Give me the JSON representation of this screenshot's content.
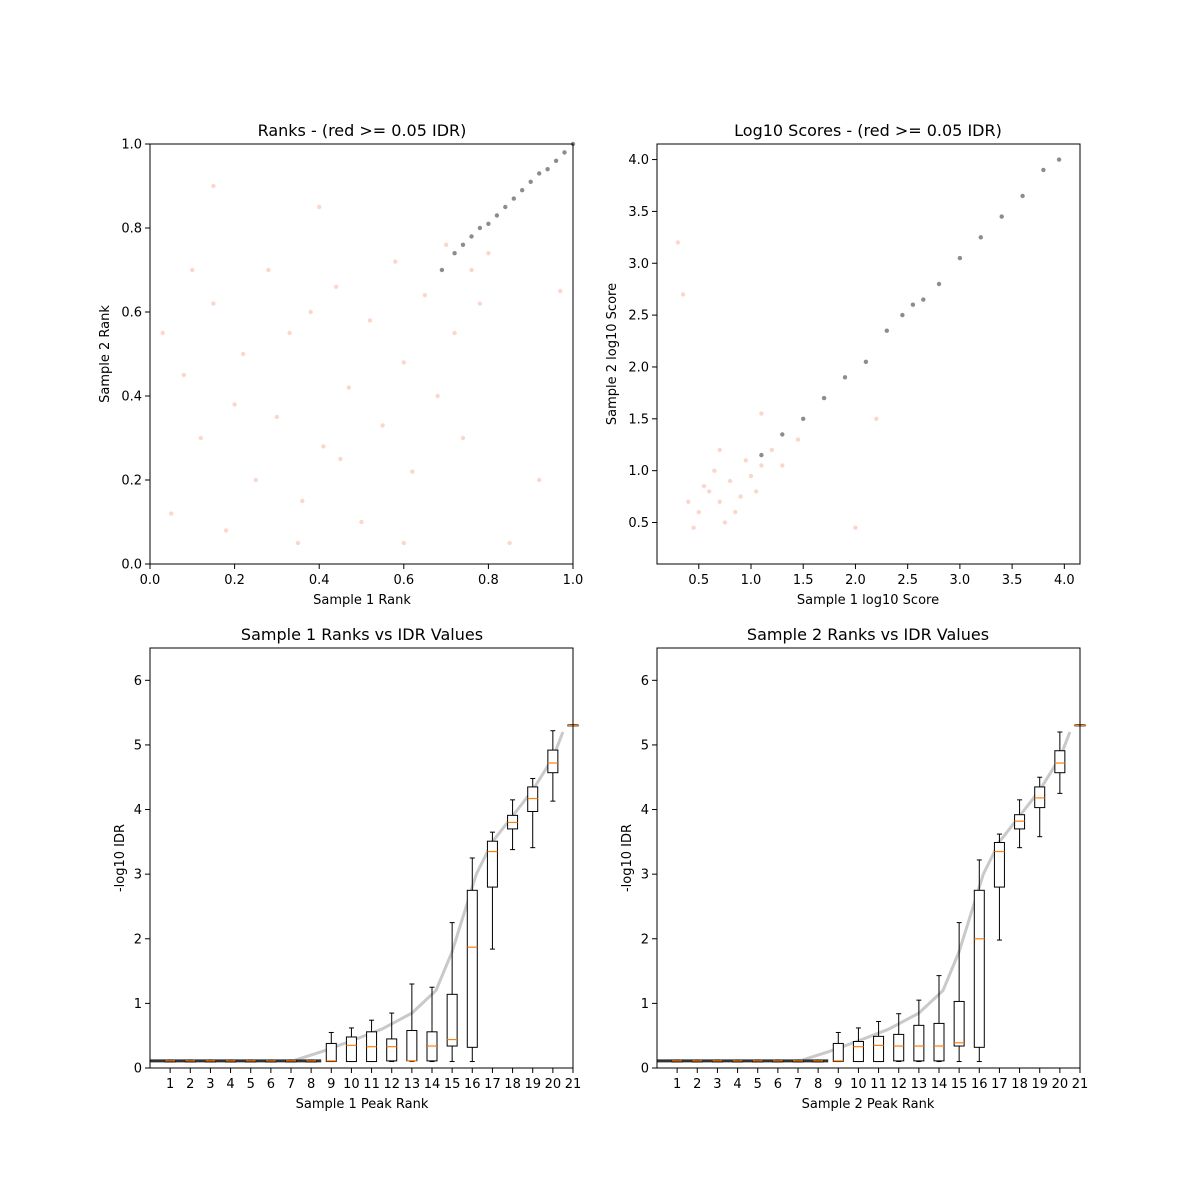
{
  "chart_data": [
    {
      "id": "ranks",
      "type": "scatter",
      "title": "Ranks - (red >= 0.05 IDR)",
      "xlabel": "Sample 1 Rank",
      "ylabel": "Sample 2 Rank",
      "xlim": [
        0,
        1
      ],
      "ylim": [
        0,
        1
      ],
      "xticks": [
        "0.0",
        "0.2",
        "0.4",
        "0.6",
        "0.8",
        "1.0"
      ],
      "yticks": [
        "0.0",
        "0.2",
        "0.4",
        "0.6",
        "0.8",
        "1.0"
      ],
      "grid": false,
      "colors": {
        "fail_idr": "#fa8a6a",
        "pass_idr": "#000000"
      },
      "series": [
        {
          "values": [
            [
              0.05,
              0.12
            ],
            [
              0.08,
              0.45
            ],
            [
              0.12,
              0.3
            ],
            [
              0.15,
              0.62
            ],
            [
              0.18,
              0.08
            ],
            [
              0.22,
              0.5
            ],
            [
              0.25,
              0.2
            ],
            [
              0.28,
              0.7
            ],
            [
              0.3,
              0.35
            ],
            [
              0.33,
              0.55
            ],
            [
              0.36,
              0.15
            ],
            [
              0.38,
              0.6
            ],
            [
              0.41,
              0.28
            ],
            [
              0.44,
              0.66
            ],
            [
              0.47,
              0.42
            ],
            [
              0.5,
              0.1
            ],
            [
              0.52,
              0.58
            ],
            [
              0.55,
              0.33
            ],
            [
              0.58,
              0.72
            ],
            [
              0.6,
              0.48
            ],
            [
              0.62,
              0.22
            ],
            [
              0.65,
              0.64
            ],
            [
              0.68,
              0.4
            ],
            [
              0.7,
              0.76
            ],
            [
              0.72,
              0.55
            ],
            [
              0.74,
              0.3
            ],
            [
              0.76,
              0.7
            ],
            [
              0.78,
              0.62
            ],
            [
              0.8,
              0.74
            ],
            [
              0.1,
              0.7
            ],
            [
              0.2,
              0.38
            ],
            [
              0.35,
              0.05
            ],
            [
              0.45,
              0.25
            ],
            [
              0.6,
              0.05
            ],
            [
              0.03,
              0.55
            ],
            [
              0.15,
              0.9
            ],
            [
              0.4,
              0.85
            ],
            [
              0.92,
              0.2
            ],
            [
              0.97,
              0.65
            ],
            [
              0.85,
              0.05
            ]
          ]
        },
        {
          "values": [
            [
              0.69,
              0.7
            ],
            [
              0.72,
              0.74
            ],
            [
              0.74,
              0.76
            ],
            [
              0.76,
              0.78
            ],
            [
              0.78,
              0.8
            ],
            [
              0.8,
              0.81
            ],
            [
              0.82,
              0.83
            ],
            [
              0.84,
              0.85
            ],
            [
              0.86,
              0.87
            ],
            [
              0.88,
              0.89
            ],
            [
              0.9,
              0.91
            ],
            [
              0.92,
              0.93
            ],
            [
              0.94,
              0.94
            ],
            [
              0.96,
              0.96
            ],
            [
              0.98,
              0.98
            ],
            [
              1.0,
              1.0
            ]
          ]
        }
      ]
    },
    {
      "id": "scores",
      "type": "scatter",
      "title": "Log10 Scores - (red >= 0.05 IDR)",
      "xlabel": "Sample 1 log10 Score",
      "ylabel": "Sample 2 log10 Score",
      "xlim": [
        0.1,
        4.15
      ],
      "ylim": [
        0.1,
        4.15
      ],
      "xticks": [
        "0.5",
        "1.0",
        "1.5",
        "2.0",
        "2.5",
        "3.0",
        "3.5",
        "4.0"
      ],
      "yticks": [
        "0.5",
        "1.0",
        "1.5",
        "2.0",
        "2.5",
        "3.0",
        "3.5",
        "4.0"
      ],
      "grid": false,
      "colors": {
        "fail_idr": "#fa8a6a",
        "pass_idr": "#000000"
      },
      "series": [
        {
          "values": [
            [
              0.5,
              0.6
            ],
            [
              0.6,
              0.8
            ],
            [
              0.7,
              0.7
            ],
            [
              0.8,
              0.9
            ],
            [
              0.9,
              0.75
            ],
            [
              0.65,
              1.0
            ],
            [
              0.75,
              0.5
            ],
            [
              0.85,
              0.6
            ],
            [
              1.0,
              0.95
            ],
            [
              1.05,
              0.8
            ],
            [
              0.55,
              0.85
            ],
            [
              0.95,
              1.1
            ],
            [
              1.1,
              1.05
            ],
            [
              0.4,
              0.7
            ],
            [
              1.2,
              1.2
            ],
            [
              0.7,
              1.2
            ],
            [
              1.3,
              1.05
            ],
            [
              0.45,
              0.45
            ],
            [
              1.45,
              1.3
            ],
            [
              2.0,
              0.45
            ],
            [
              0.3,
              3.2
            ],
            [
              0.35,
              2.7
            ],
            [
              2.2,
              1.5
            ],
            [
              1.1,
              1.55
            ]
          ]
        },
        {
          "values": [
            [
              1.1,
              1.15
            ],
            [
              1.3,
              1.35
            ],
            [
              1.5,
              1.5
            ],
            [
              1.7,
              1.7
            ],
            [
              1.9,
              1.9
            ],
            [
              2.1,
              2.05
            ],
            [
              2.3,
              2.35
            ],
            [
              2.45,
              2.5
            ],
            [
              2.55,
              2.6
            ],
            [
              2.65,
              2.65
            ],
            [
              2.8,
              2.8
            ],
            [
              3.0,
              3.05
            ],
            [
              3.2,
              3.25
            ],
            [
              3.4,
              3.45
            ],
            [
              3.6,
              3.65
            ],
            [
              3.8,
              3.9
            ],
            [
              3.95,
              4.0
            ]
          ]
        }
      ]
    },
    {
      "id": "s1",
      "type": "box",
      "title": "Sample 1 Ranks vs IDR Values",
      "xlabel": "Sample 1 Peak Rank",
      "ylabel": "-log10 IDR",
      "xlim": [
        0,
        21
      ],
      "ylim": [
        0,
        6.5
      ],
      "xticks": [
        "1",
        "2",
        "3",
        "4",
        "5",
        "6",
        "7",
        "8",
        "9",
        "10",
        "11",
        "12",
        "13",
        "14",
        "15",
        "16",
        "17",
        "18",
        "19",
        "20",
        "21"
      ],
      "yticks": [
        "0",
        "1",
        "2",
        "3",
        "4",
        "5",
        "6"
      ],
      "grid": false,
      "colors": {
        "box": "#000000",
        "median": "#ff7f0e",
        "points": "#888888"
      },
      "positions": [
        1,
        2,
        3,
        4,
        5,
        6,
        7,
        8,
        9,
        10,
        11,
        12,
        13,
        14,
        15,
        16,
        17,
        18,
        19,
        20,
        21
      ],
      "boxes": [
        [
          0.1,
          0.11,
          0.11,
          0.11,
          0.12
        ],
        [
          0.1,
          0.11,
          0.11,
          0.11,
          0.12
        ],
        [
          0.1,
          0.11,
          0.11,
          0.11,
          0.12
        ],
        [
          0.1,
          0.11,
          0.11,
          0.11,
          0.12
        ],
        [
          0.1,
          0.11,
          0.11,
          0.11,
          0.12
        ],
        [
          0.1,
          0.11,
          0.11,
          0.11,
          0.12
        ],
        [
          0.1,
          0.11,
          0.11,
          0.11,
          0.12
        ],
        [
          0.1,
          0.11,
          0.11,
          0.11,
          0.12
        ],
        [
          0.1,
          0.1,
          0.11,
          0.38,
          0.55
        ],
        [
          0.1,
          0.1,
          0.35,
          0.48,
          0.62
        ],
        [
          0.1,
          0.1,
          0.33,
          0.56,
          0.74
        ],
        [
          0.1,
          0.11,
          0.33,
          0.45,
          0.85
        ],
        [
          0.1,
          0.11,
          0.11,
          0.58,
          1.3
        ],
        [
          0.1,
          0.11,
          0.34,
          0.56,
          1.25
        ],
        [
          0.1,
          0.34,
          0.44,
          1.14,
          2.25
        ],
        [
          0.1,
          0.32,
          1.87,
          2.75,
          3.25
        ],
        [
          1.84,
          2.8,
          3.35,
          3.51,
          3.65
        ],
        [
          3.38,
          3.7,
          3.8,
          3.91,
          4.15
        ],
        [
          3.41,
          3.97,
          4.17,
          4.35,
          4.48
        ],
        [
          4.13,
          4.57,
          4.72,
          4.92,
          5.22
        ],
        [
          5.3,
          5.3,
          5.3,
          5.31,
          5.31
        ]
      ],
      "curve": [
        [
          7.2,
          0.12
        ],
        [
          8.5,
          0.25
        ],
        [
          10.0,
          0.42
        ],
        [
          11.5,
          0.6
        ],
        [
          13.0,
          0.85
        ],
        [
          14.2,
          1.2
        ],
        [
          15.0,
          1.8
        ],
        [
          15.6,
          2.4
        ],
        [
          16.2,
          3.0
        ],
        [
          17.0,
          3.5
        ],
        [
          18.0,
          3.9
        ],
        [
          19.0,
          4.3
        ],
        [
          20.0,
          4.8
        ],
        [
          20.5,
          5.2
        ]
      ]
    },
    {
      "id": "s2",
      "type": "box",
      "title": "Sample 2 Ranks vs IDR Values",
      "xlabel": "Sample 2 Peak Rank",
      "ylabel": "-log10 IDR",
      "xlim": [
        0,
        21
      ],
      "ylim": [
        0,
        6.5
      ],
      "xticks": [
        "1",
        "2",
        "3",
        "4",
        "5",
        "6",
        "7",
        "8",
        "9",
        "10",
        "11",
        "12",
        "13",
        "14",
        "15",
        "16",
        "17",
        "18",
        "19",
        "20",
        "21"
      ],
      "yticks": [
        "0",
        "1",
        "2",
        "3",
        "4",
        "5",
        "6"
      ],
      "grid": false,
      "colors": {
        "box": "#000000",
        "median": "#ff7f0e",
        "points": "#888888"
      },
      "positions": [
        1,
        2,
        3,
        4,
        5,
        6,
        7,
        8,
        9,
        10,
        11,
        12,
        13,
        14,
        15,
        16,
        17,
        18,
        19,
        20,
        21
      ],
      "boxes": [
        [
          0.1,
          0.11,
          0.11,
          0.11,
          0.12
        ],
        [
          0.1,
          0.11,
          0.11,
          0.11,
          0.12
        ],
        [
          0.1,
          0.11,
          0.11,
          0.11,
          0.12
        ],
        [
          0.1,
          0.11,
          0.11,
          0.11,
          0.12
        ],
        [
          0.1,
          0.11,
          0.11,
          0.11,
          0.12
        ],
        [
          0.1,
          0.11,
          0.11,
          0.11,
          0.12
        ],
        [
          0.1,
          0.11,
          0.11,
          0.11,
          0.12
        ],
        [
          0.1,
          0.11,
          0.11,
          0.11,
          0.12
        ],
        [
          0.1,
          0.1,
          0.11,
          0.38,
          0.55
        ],
        [
          0.1,
          0.1,
          0.33,
          0.41,
          0.62
        ],
        [
          0.1,
          0.1,
          0.35,
          0.49,
          0.72
        ],
        [
          0.1,
          0.11,
          0.34,
          0.52,
          0.84
        ],
        [
          0.1,
          0.11,
          0.34,
          0.66,
          1.05
        ],
        [
          0.1,
          0.11,
          0.34,
          0.69,
          1.43
        ],
        [
          0.1,
          0.34,
          0.39,
          1.03,
          2.25
        ],
        [
          0.1,
          0.32,
          2.0,
          2.75,
          3.22
        ],
        [
          1.98,
          2.8,
          3.35,
          3.49,
          3.62
        ],
        [
          3.41,
          3.7,
          3.82,
          3.92,
          4.15
        ],
        [
          3.58,
          4.03,
          4.18,
          4.35,
          4.5
        ],
        [
          4.25,
          4.57,
          4.72,
          4.91,
          5.2
        ],
        [
          5.3,
          5.3,
          5.3,
          5.31,
          5.31
        ]
      ],
      "curve": [
        [
          7.2,
          0.12
        ],
        [
          8.5,
          0.25
        ],
        [
          10.0,
          0.42
        ],
        [
          11.5,
          0.6
        ],
        [
          13.0,
          0.85
        ],
        [
          14.2,
          1.2
        ],
        [
          15.0,
          1.8
        ],
        [
          15.6,
          2.4
        ],
        [
          16.2,
          3.0
        ],
        [
          17.0,
          3.5
        ],
        [
          18.0,
          3.9
        ],
        [
          19.0,
          4.3
        ],
        [
          20.0,
          4.8
        ],
        [
          20.5,
          5.2
        ]
      ]
    }
  ]
}
